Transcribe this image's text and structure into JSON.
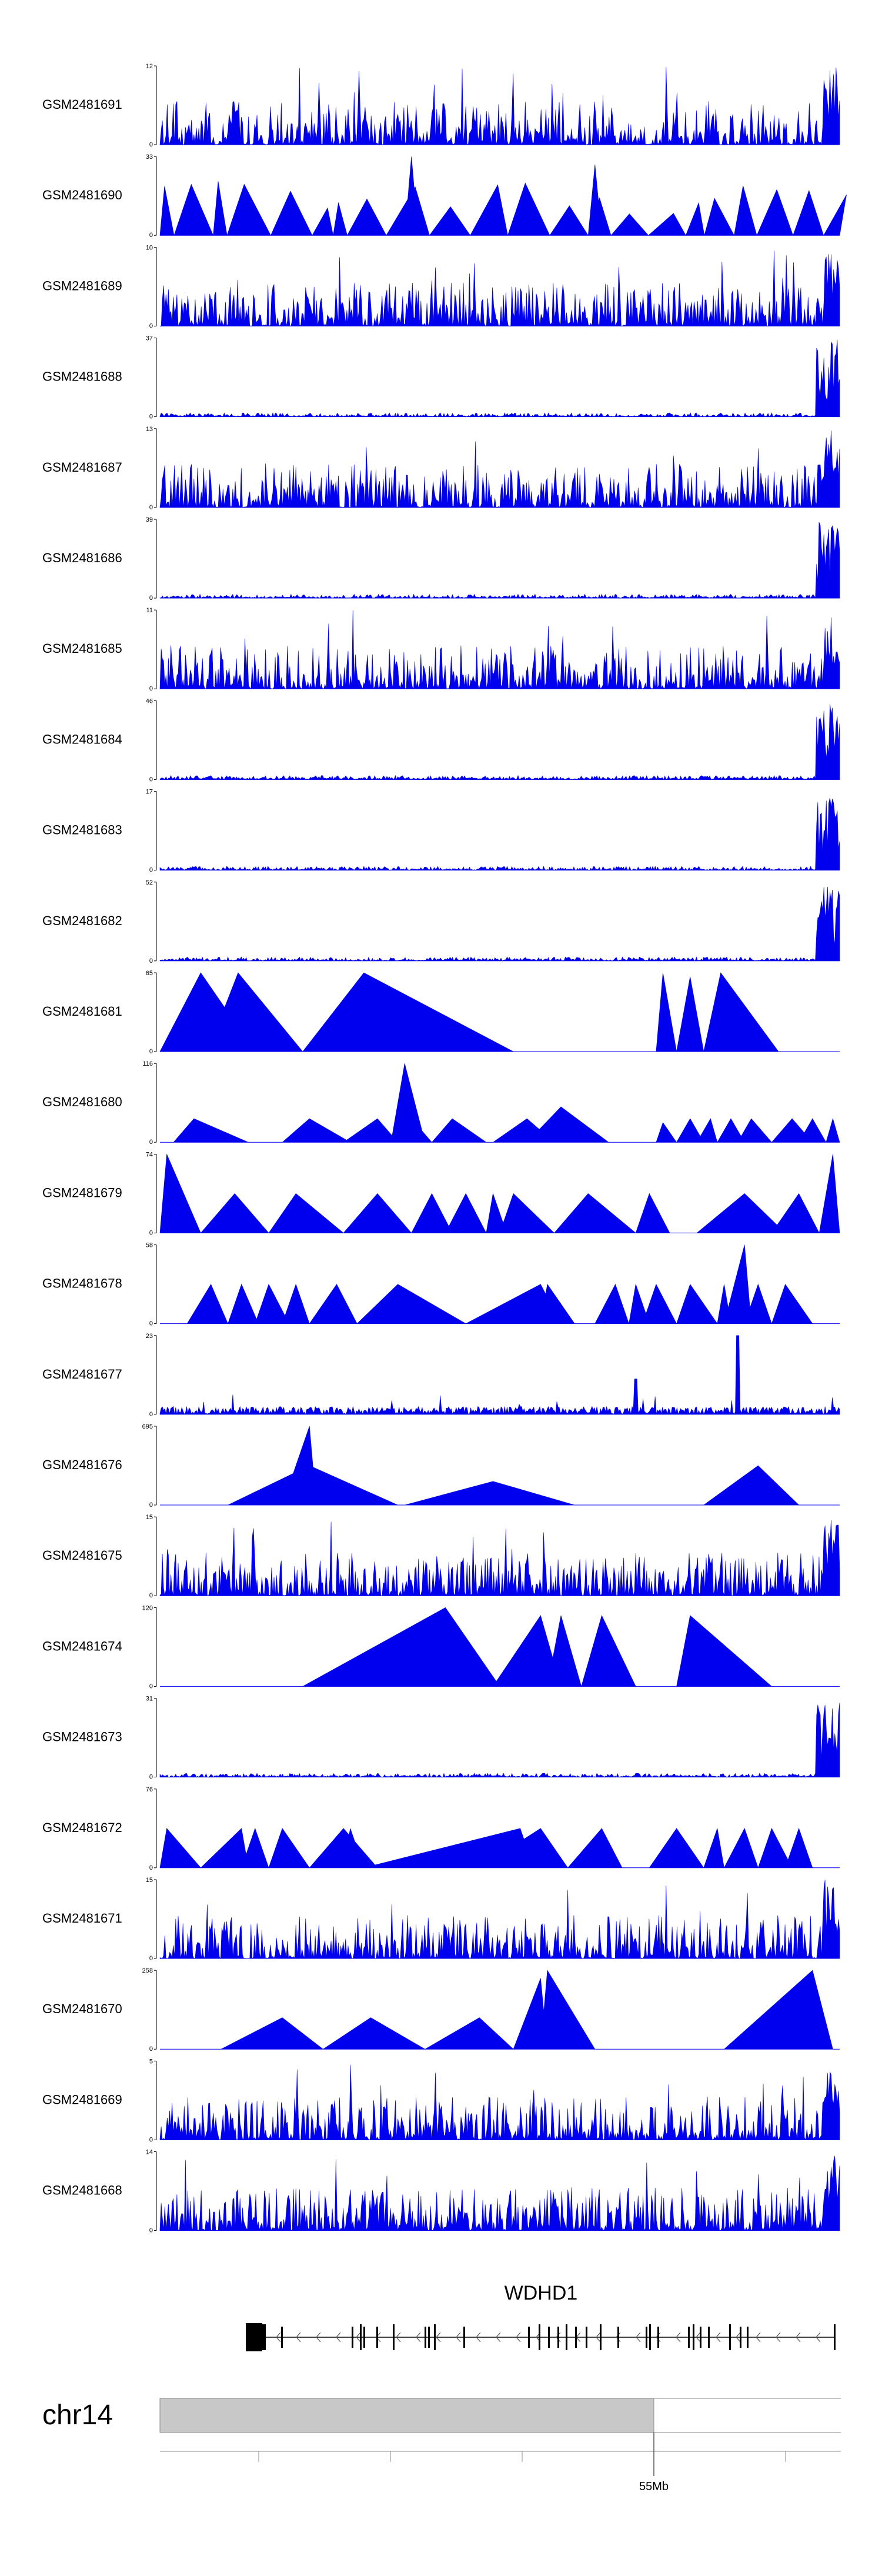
{
  "colors": {
    "signal": "#0000ee",
    "ideogram": "#c8c8c8",
    "axis": "#000000",
    "gene": "#000000"
  },
  "chart_data": {
    "type": "area",
    "title": "",
    "tracks": [
      {
        "sample": "GSM2481691",
        "ymax": "12",
        "ymin": "0",
        "pattern": "dense",
        "max": 12
      },
      {
        "sample": "GSM2481690",
        "ymax": "33",
        "ymin": "0",
        "pattern": "sparse",
        "max": 33
      },
      {
        "sample": "GSM2481689",
        "ymax": "10",
        "ymin": "0",
        "pattern": "dense",
        "max": 10
      },
      {
        "sample": "GSM2481688",
        "ymax": "37",
        "ymin": "0",
        "pattern": "edge",
        "max": 37
      },
      {
        "sample": "GSM2481687",
        "ymax": "13",
        "ymin": "0",
        "pattern": "dense",
        "max": 13
      },
      {
        "sample": "GSM2481686",
        "ymax": "39",
        "ymin": "0",
        "pattern": "edge",
        "max": 39
      },
      {
        "sample": "GSM2481685",
        "ymax": "11",
        "ymin": "0",
        "pattern": "dense",
        "max": 11
      },
      {
        "sample": "GSM2481684",
        "ymax": "46",
        "ymin": "0",
        "pattern": "edge",
        "max": 46
      },
      {
        "sample": "GSM2481683",
        "ymax": "17",
        "ymin": "0",
        "pattern": "edge",
        "max": 17
      },
      {
        "sample": "GSM2481682",
        "ymax": "52",
        "ymin": "0",
        "pattern": "edge",
        "max": 52
      },
      {
        "sample": "GSM2481681",
        "ymax": "65",
        "ymin": "0",
        "pattern": "tri_large",
        "max": 65
      },
      {
        "sample": "GSM2481680",
        "ymax": "116",
        "ymin": "0",
        "pattern": "tri_spike",
        "max": 116
      },
      {
        "sample": "GSM2481679",
        "ymax": "74",
        "ymin": "0",
        "pattern": "tri_many",
        "max": 74
      },
      {
        "sample": "GSM2481678",
        "ymax": "58",
        "ymin": "0",
        "pattern": "tri_many2",
        "max": 58
      },
      {
        "sample": "GSM2481677",
        "ymax": "23",
        "ymin": "0",
        "pattern": "low_spike",
        "max": 23
      },
      {
        "sample": "GSM2481676",
        "ymax": "695",
        "ymin": "0",
        "pattern": "tri_few",
        "max": 695
      },
      {
        "sample": "GSM2481675",
        "ymax": "15",
        "ymin": "0",
        "pattern": "dense",
        "max": 15
      },
      {
        "sample": "GSM2481674",
        "ymax": "120",
        "ymin": "0",
        "pattern": "tri_big",
        "max": 120
      },
      {
        "sample": "GSM2481673",
        "ymax": "31",
        "ymin": "0",
        "pattern": "edge",
        "max": 31
      },
      {
        "sample": "GSM2481672",
        "ymax": "76",
        "ymin": "0",
        "pattern": "tri_many3",
        "max": 76
      },
      {
        "sample": "GSM2481671",
        "ymax": "15",
        "ymin": "0",
        "pattern": "dense",
        "max": 15
      },
      {
        "sample": "GSM2481670",
        "ymax": "258",
        "ymin": "0",
        "pattern": "tri_mixed",
        "max": 258
      },
      {
        "sample": "GSM2481669",
        "ymax": "5",
        "ymin": "0",
        "pattern": "dense",
        "max": 5
      },
      {
        "sample": "GSM2481668",
        "ymax": "14",
        "ymin": "0",
        "pattern": "dense",
        "max": 14
      }
    ],
    "gene": {
      "name": "WDHD1",
      "strand": "-"
    },
    "chromosome": {
      "name": "chr14",
      "position_label": "55Mb"
    }
  }
}
